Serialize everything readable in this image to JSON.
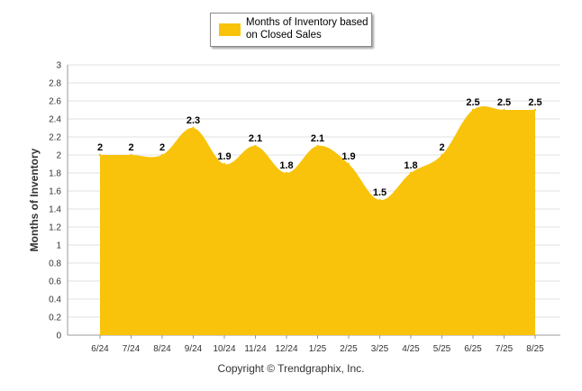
{
  "legend": {
    "label": "Months of Inventory based on Closed Sales"
  },
  "footer": {
    "copyright": "Copyright © Trendgraphix, Inc."
  },
  "colors": {
    "area": "#F8C30A",
    "grid": "#e2e2e2",
    "axis": "#9a9a9a",
    "text": "#333333"
  },
  "chart_data": {
    "type": "area",
    "title": "",
    "xlabel": "",
    "ylabel": "Months of Inventory",
    "categories": [
      "6/24",
      "7/24",
      "8/24",
      "9/24",
      "10/24",
      "11/24",
      "12/24",
      "1/25",
      "2/25",
      "3/25",
      "4/25",
      "5/25",
      "6/25",
      "7/25",
      "8/25"
    ],
    "series": [
      {
        "name": "Months of Inventory based on Closed Sales",
        "values": [
          2,
          2,
          2,
          2.3,
          1.9,
          2.1,
          1.8,
          2.1,
          1.9,
          1.5,
          1.8,
          2,
          2.5,
          2.5,
          2.5
        ]
      }
    ],
    "ylim": [
      0,
      3
    ],
    "yticks": [
      0,
      0.2,
      0.4,
      0.6,
      0.8,
      1,
      1.2,
      1.4,
      1.6,
      1.8,
      2,
      2.2,
      2.4,
      2.6,
      2.8,
      3
    ],
    "grid": true,
    "legend_position": "top"
  }
}
